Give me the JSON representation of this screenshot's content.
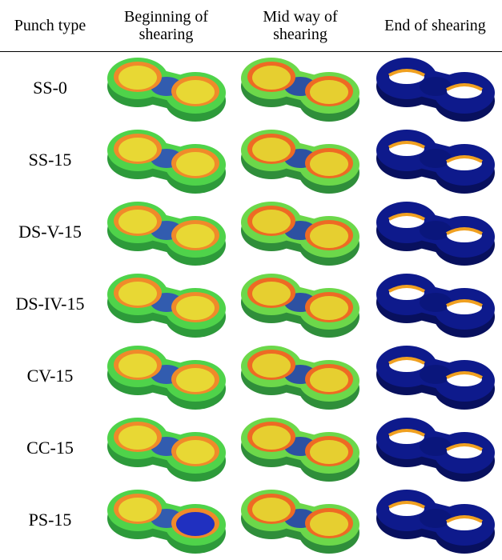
{
  "table": {
    "headers": [
      "Punch type",
      "Beginning of shearing",
      "Mid way of shearing",
      "End of shearing"
    ],
    "rows": [
      [
        "SS-0"
      ],
      [
        "SS-15"
      ],
      [
        "DS-V-15"
      ],
      [
        "DS-IV-15"
      ],
      [
        "CV-15"
      ],
      [
        "CC-15"
      ],
      [
        "PS-15"
      ]
    ]
  }
}
